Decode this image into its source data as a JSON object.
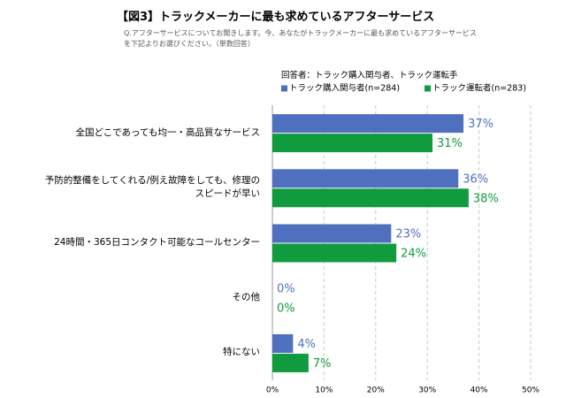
{
  "chart_data": {
    "type": "bar",
    "orientation": "horizontal",
    "title": "【図3】トラックメーカーに最も求めているアフターサービス",
    "subtitle": [
      "Q.アフターサービスについてお聞きします。今、あなたがトラックメーカーに最も求めているアフターサービス",
      "を下記よりお選びください。（単数回答）"
    ],
    "legend_title": "回答者：トラック購入関与者、トラック運転手",
    "categories": [
      "全国どこであっても均一・高品質なサービス",
      "予防的整備をしてくれる/例え故障をしても、修理の\nスピードが早い",
      "24時間・365日コンタクト可能なコールセンター",
      "その他",
      "特にない"
    ],
    "series": [
      {
        "name": "トラック購入関与者(n=284)",
        "color": "#4f6fbf",
        "values": [
          37,
          36,
          23,
          0,
          4
        ],
        "value_labels": [
          "37%",
          "36%",
          "23%",
          "0%",
          "4%"
        ]
      },
      {
        "name": "トラック運転者(n=283)",
        "color": "#0f9b3e",
        "values": [
          31,
          38,
          24,
          0,
          7
        ],
        "value_labels": [
          "31%",
          "38%",
          "24%",
          "0%",
          "7%"
        ]
      }
    ],
    "xlim": [
      0,
      50
    ],
    "xticks": [
      {
        "value": 0,
        "label": "0%"
      },
      {
        "value": 10,
        "label": "10%"
      },
      {
        "value": 20,
        "label": "20%"
      },
      {
        "value": 30,
        "label": "30%"
      },
      {
        "value": 40,
        "label": "40%"
      },
      {
        "value": 50,
        "label": "50%"
      }
    ],
    "grid": true
  }
}
